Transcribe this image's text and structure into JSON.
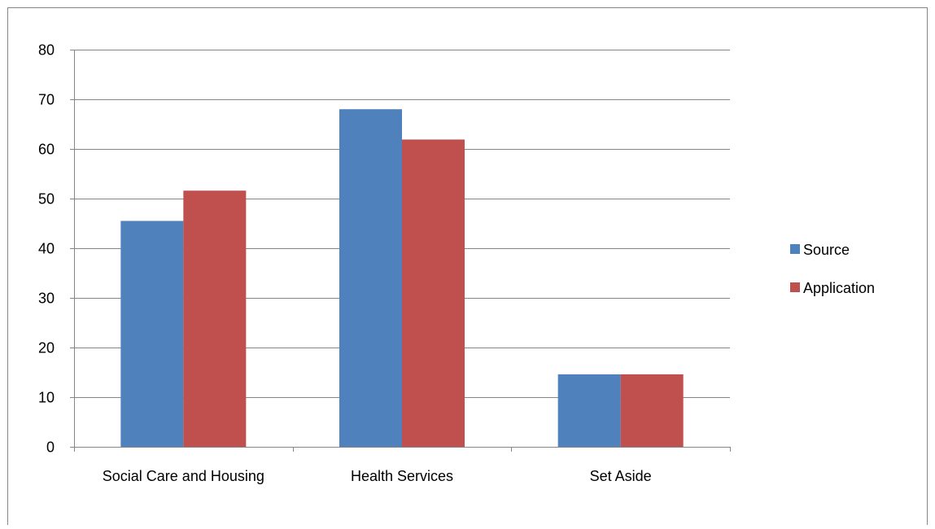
{
  "chart_data": {
    "type": "bar",
    "title": "",
    "xlabel": "",
    "ylabel": "",
    "categories": [
      "Social Care and Housing",
      "Health Services",
      "Set Aside"
    ],
    "series": [
      {
        "name": "Source",
        "values": [
          45.5,
          68,
          14.6
        ]
      },
      {
        "name": "Application",
        "values": [
          51.6,
          61.9,
          14.6
        ]
      }
    ],
    "ylim": [
      0,
      80
    ],
    "yticks": [
      "0",
      "10",
      "20",
      "30",
      "40",
      "50",
      "60",
      "70",
      "80"
    ],
    "grid": "horizontal",
    "legend_position": "right"
  },
  "colors": {
    "series": [
      "#4f81bd",
      "#c0504d"
    ],
    "gridline": "#868686",
    "axis": "#868686",
    "frame": "#868686"
  }
}
